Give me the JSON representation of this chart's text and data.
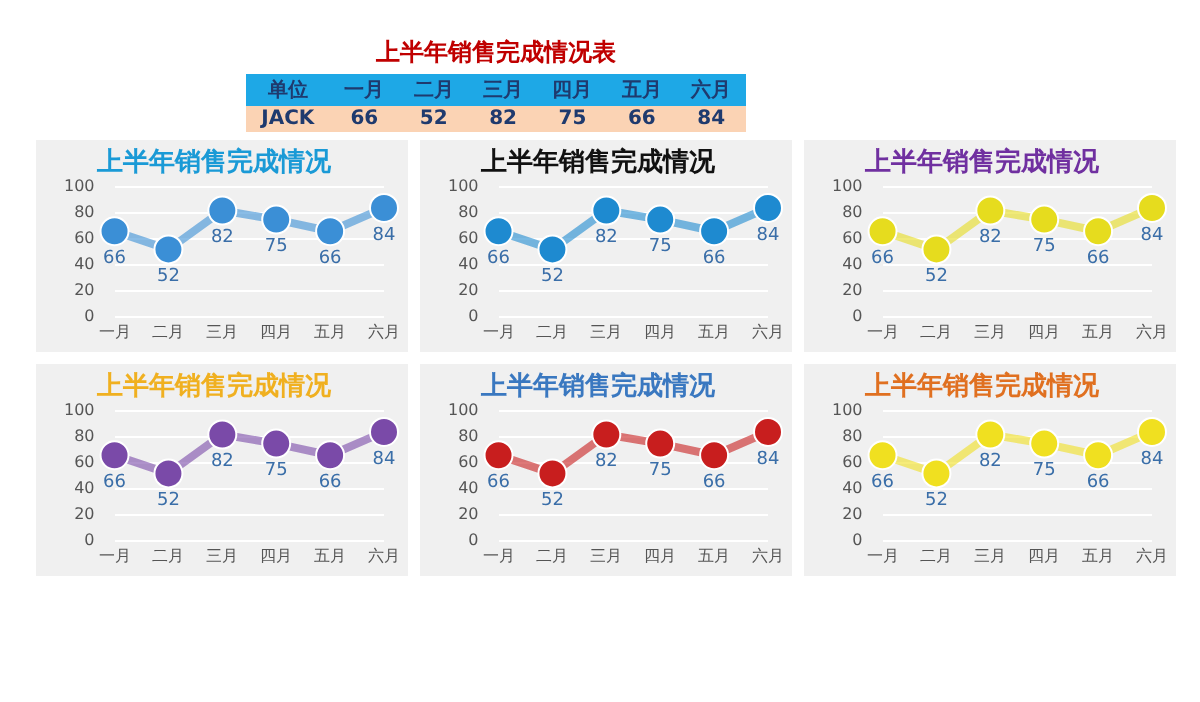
{
  "chart_data": [
    {
      "type": "other",
      "title": "上半年销售完成情况表",
      "categories": [
        "一月",
        "二月",
        "三月",
        "四月",
        "五月",
        "六月"
      ],
      "values": [
        66,
        52,
        82,
        75,
        66,
        84
      ],
      "annotations": [
        "单位",
        "JACK"
      ],
      "data_labels": true
    },
    {
      "type": "line",
      "title": "上半年销售完成情况",
      "categories": [
        "一月",
        "二月",
        "三月",
        "四月",
        "五月",
        "六月"
      ],
      "series": [
        {
          "color": "#3b8fd6",
          "values": [
            66,
            52,
            82,
            75,
            66,
            84
          ]
        }
      ],
      "ylim": [
        0,
        100
      ],
      "yticks": [
        0,
        20,
        40,
        60,
        80,
        100
      ],
      "grid": "y",
      "legend": false,
      "marker": "circle",
      "data_labels": true
    },
    {
      "type": "line",
      "title": "上半年销售完成情况",
      "categories": [
        "一月",
        "二月",
        "三月",
        "四月",
        "五月",
        "六月"
      ],
      "series": [
        {
          "color": "#1e8ad0",
          "values": [
            66,
            52,
            82,
            75,
            66,
            84
          ]
        }
      ],
      "ylim": [
        0,
        100
      ],
      "yticks": [
        0,
        20,
        40,
        60,
        80,
        100
      ],
      "grid": "y",
      "legend": false,
      "marker": "circle",
      "data_labels": true
    },
    {
      "type": "line",
      "title": "上半年销售完成情况",
      "categories": [
        "一月",
        "二月",
        "三月",
        "四月",
        "五月",
        "六月"
      ],
      "series": [
        {
          "color": "#e6dc1e",
          "values": [
            66,
            52,
            82,
            75,
            66,
            84
          ]
        }
      ],
      "ylim": [
        0,
        100
      ],
      "yticks": [
        0,
        20,
        40,
        60,
        80,
        100
      ],
      "grid": "y",
      "legend": false,
      "marker": "circle",
      "data_labels": true
    },
    {
      "type": "line",
      "title": "上半年销售完成情况",
      "categories": [
        "一月",
        "二月",
        "三月",
        "四月",
        "五月",
        "六月"
      ],
      "series": [
        {
          "color": "#7a4aa8",
          "values": [
            66,
            52,
            82,
            75,
            66,
            84
          ]
        }
      ],
      "ylim": [
        0,
        100
      ],
      "yticks": [
        0,
        20,
        40,
        60,
        80,
        100
      ],
      "grid": "y",
      "legend": false,
      "marker": "circle",
      "data_labels": true
    },
    {
      "type": "line",
      "title": "上半年销售完成情况",
      "categories": [
        "一月",
        "二月",
        "三月",
        "四月",
        "五月",
        "六月"
      ],
      "series": [
        {
          "color": "#c81e1e",
          "values": [
            66,
            52,
            82,
            75,
            66,
            84
          ]
        }
      ],
      "ylim": [
        0,
        100
      ],
      "yticks": [
        0,
        20,
        40,
        60,
        80,
        100
      ],
      "grid": "y",
      "legend": false,
      "marker": "circle",
      "data_labels": true
    },
    {
      "type": "line",
      "title": "上半年销售完成情况",
      "categories": [
        "一月",
        "二月",
        "三月",
        "四月",
        "五月",
        "六月"
      ],
      "series": [
        {
          "color": "#f0e020",
          "values": [
            66,
            52,
            82,
            75,
            66,
            84
          ]
        }
      ],
      "ylim": [
        0,
        100
      ],
      "yticks": [
        0,
        20,
        40,
        60,
        80,
        100
      ],
      "grid": "y",
      "legend": false,
      "marker": "circle",
      "data_labels": true
    }
  ]
}
